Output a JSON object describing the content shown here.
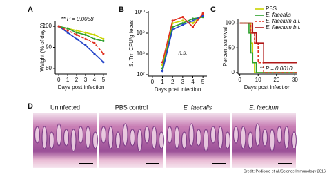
{
  "chart_data": [
    {
      "type": "line",
      "label": "A",
      "ylabel": "Weight (% of day 0)",
      "xlabel": "Days post infection",
      "annotation": "** P = 0.0058",
      "x": [
        0,
        1,
        2,
        3,
        4,
        5
      ],
      "xlim": [
        -0.4,
        5.4
      ],
      "xticks": [
        0,
        1,
        2,
        3,
        4,
        5
      ],
      "ylim": [
        78,
        102
      ],
      "yticks": [
        80,
        90,
        100
      ],
      "series": [
        {
          "color": "#c9d400",
          "values": [
            100,
            99,
            98,
            97,
            96,
            94
          ]
        },
        {
          "color": "#2ca02c",
          "values": [
            100,
            99,
            97,
            96,
            94,
            93
          ]
        },
        {
          "color": "#2444c8",
          "values": [
            100,
            97,
            94,
            91,
            87,
            83
          ]
        },
        {
          "color": "#e03020",
          "dashed": true,
          "values": [
            100,
            98,
            96,
            94,
            92,
            87
          ]
        }
      ]
    },
    {
      "type": "line",
      "label": "B",
      "ylabel": "S. Tm CFU/g feces",
      "xlabel": "Days post infection",
      "annotation": "n.s.",
      "log_y": true,
      "x": [
        1,
        2,
        3,
        4,
        5
      ],
      "xlim": [
        -0.4,
        5.4
      ],
      "xticks": [
        0,
        1,
        2,
        3,
        4,
        5
      ],
      "ylim": [
        10000000,
        10000000000
      ],
      "yticks": [
        {
          "value": 10000000,
          "label": "10⁷"
        },
        {
          "value": 100000000,
          "label": "10⁸"
        },
        {
          "value": 1000000000,
          "label": "10⁹"
        },
        {
          "value": 10000000000,
          "label": "10¹⁰"
        }
      ],
      "series": [
        {
          "color": "#c9d400",
          "values": [
            30000000,
            3000000000,
            4000000000,
            3000000000,
            8000000000
          ]
        },
        {
          "color": "#2ca02c",
          "values": [
            20000000,
            2000000000,
            3000000000,
            5000000000,
            6000000000
          ]
        },
        {
          "color": "#2444c8",
          "values": [
            15000000,
            1500000000,
            2500000000,
            4000000000,
            7000000000
          ]
        },
        {
          "color": "#e03020",
          "values": [
            40000000,
            4000000000,
            6000000000,
            2000000000,
            9000000000
          ]
        }
      ]
    },
    {
      "type": "step",
      "label": "C",
      "ylabel": "Percent survival",
      "xlabel": "Days post infection",
      "annotation": "** P = 0.0010",
      "xlim": [
        -1,
        31
      ],
      "xticks": [
        0,
        10,
        20,
        30
      ],
      "ylim": [
        0,
        105
      ],
      "yticks": [
        0,
        50,
        100
      ],
      "series": [
        {
          "name": "PBS",
          "color": "#c9d400",
          "x": [
            0,
            6,
            7,
            8
          ],
          "values": [
            100,
            60,
            20,
            0
          ]
        },
        {
          "name": "E. faecalis",
          "color": "#2ca02c",
          "x": [
            0,
            5,
            6,
            7,
            9
          ],
          "values": [
            100,
            80,
            40,
            20,
            0
          ]
        },
        {
          "name": "E. faecium a.i.",
          "color": "#e03020",
          "dashed": true,
          "x": [
            0,
            6,
            8,
            10,
            13
          ],
          "values": [
            100,
            80,
            60,
            20,
            0
          ]
        },
        {
          "name": "E. faecium b.i.",
          "color": "#b01818",
          "x": [
            0,
            7,
            9,
            13,
            30
          ],
          "values": [
            100,
            80,
            60,
            20,
            20
          ]
        }
      ]
    }
  ],
  "histology": {
    "label": "D",
    "panels": [
      "Uninfected",
      "PBS control",
      "E. faecalis",
      "E. faecium"
    ]
  },
  "credit": "Credit: Pedicord et al./Science Immunology 2016"
}
